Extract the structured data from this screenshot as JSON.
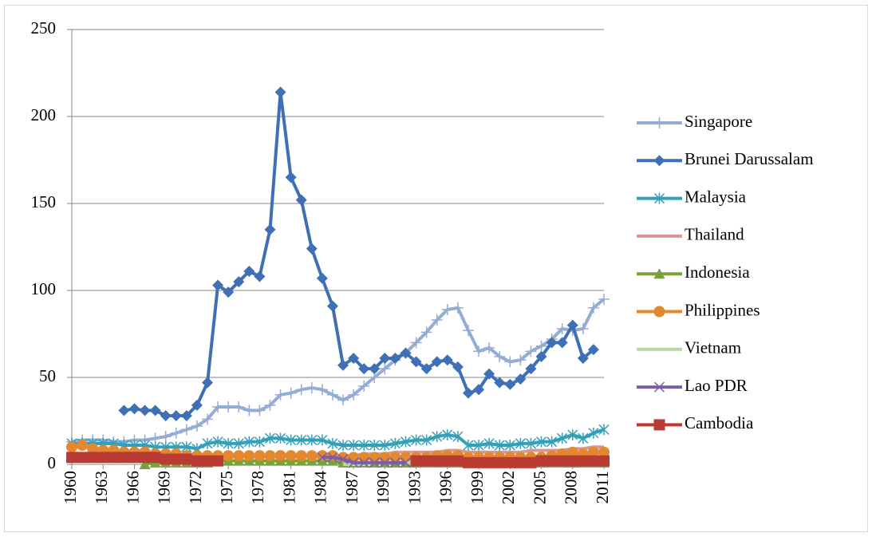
{
  "chart_data": {
    "type": "line",
    "x": [
      1960,
      1961,
      1962,
      1963,
      1964,
      1965,
      1966,
      1967,
      1968,
      1969,
      1970,
      1971,
      1972,
      1973,
      1974,
      1975,
      1976,
      1977,
      1978,
      1979,
      1980,
      1981,
      1982,
      1983,
      1984,
      1985,
      1986,
      1987,
      1988,
      1989,
      1990,
      1991,
      1992,
      1993,
      1994,
      1995,
      1996,
      1997,
      1998,
      1999,
      2000,
      2001,
      2002,
      2003,
      2004,
      2005,
      2006,
      2007,
      2008,
      2009,
      2010,
      2011
    ],
    "xlim": [
      1960,
      2011
    ],
    "xticks": [
      1960,
      1963,
      1966,
      1969,
      1972,
      1975,
      1978,
      1981,
      1984,
      1987,
      1990,
      1993,
      1996,
      1999,
      2002,
      2005,
      2008,
      2011
    ],
    "ylim": [
      0,
      250
    ],
    "yticks": [
      0,
      50,
      100,
      150,
      200,
      250
    ],
    "grid": true,
    "legend": "right",
    "series": [
      {
        "name": "Singapore",
        "color": "#95acd4",
        "marker": "plus",
        "values": [
          13,
          14,
          14,
          14,
          13,
          13,
          14,
          14,
          15,
          16,
          18,
          20,
          22,
          26,
          33,
          33,
          33,
          31,
          31,
          34,
          40,
          41,
          43,
          44,
          43,
          40,
          37,
          40,
          45,
          50,
          55,
          60,
          64,
          70,
          76,
          83,
          89,
          90,
          77,
          65,
          67,
          62,
          59,
          60,
          65,
          68,
          72,
          78,
          77,
          78,
          90,
          95
        ]
      },
      {
        "name": "Brunei Darussalam",
        "color": "#3f6fb5",
        "marker": "diamond",
        "values": [
          null,
          null,
          null,
          null,
          null,
          31,
          32,
          31,
          31,
          28,
          28,
          28,
          34,
          47,
          103,
          99,
          105,
          111,
          108,
          135,
          214,
          165,
          152,
          124,
          107,
          91,
          57,
          61,
          55,
          55,
          61,
          61,
          64,
          59,
          55,
          59,
          60,
          56,
          41,
          43,
          52,
          47,
          46,
          49,
          55,
          62,
          70,
          70,
          80,
          61,
          66,
          null
        ]
      },
      {
        "name": "Malaysia",
        "color": "#33a0b8",
        "marker": "asterisk",
        "values": [
          12,
          12,
          12,
          12,
          12,
          11,
          11,
          11,
          10,
          10,
          10,
          10,
          9,
          12,
          13,
          12,
          12,
          13,
          13,
          15,
          15,
          14,
          14,
          14,
          14,
          12,
          11,
          11,
          11,
          11,
          11,
          12,
          13,
          14,
          14,
          16,
          17,
          16,
          11,
          11,
          12,
          11,
          11,
          12,
          12,
          13,
          13,
          15,
          17,
          15,
          18,
          20
        ]
      },
      {
        "name": "Thailand",
        "color": "#d99694",
        "marker": "none",
        "values": [
          4,
          4,
          4,
          4,
          4,
          4,
          4,
          4,
          4,
          4,
          4,
          4,
          4,
          4,
          5,
          5,
          5,
          5,
          5,
          5,
          5,
          5,
          5,
          5,
          5,
          5,
          5,
          5,
          6,
          6,
          6,
          7,
          7,
          7,
          7,
          7,
          8,
          8,
          7,
          7,
          7,
          7,
          7,
          7,
          8,
          8,
          8,
          8,
          9,
          9,
          10,
          10
        ]
      },
      {
        "name": "Indonesia",
        "color": "#77a33a",
        "marker": "triangle",
        "values": [
          null,
          null,
          null,
          null,
          null,
          null,
          null,
          0,
          1,
          1,
          1,
          1,
          1,
          1,
          2,
          2,
          2,
          2,
          2,
          2,
          2,
          2,
          2,
          2,
          2,
          2,
          1,
          1,
          1,
          1,
          1,
          1,
          1,
          1,
          1,
          1,
          1,
          1,
          1,
          1,
          1,
          1,
          1,
          1,
          1,
          1,
          1,
          1,
          1,
          1,
          1,
          1
        ]
      },
      {
        "name": "Philippines",
        "color": "#e3882e",
        "marker": "circle",
        "values": [
          10,
          11,
          9,
          8,
          8,
          7,
          7,
          7,
          6,
          6,
          6,
          5,
          5,
          5,
          5,
          5,
          5,
          5,
          5,
          5,
          5,
          5,
          5,
          5,
          5,
          5,
          4,
          4,
          4,
          4,
          4,
          4,
          4,
          4,
          4,
          5,
          5,
          5,
          4,
          4,
          4,
          4,
          4,
          4,
          4,
          4,
          5,
          6,
          7,
          6,
          7,
          7
        ]
      },
      {
        "name": "Vietnam",
        "color": "#b6d7a8",
        "marker": "none",
        "values": [
          null,
          null,
          null,
          null,
          null,
          null,
          null,
          null,
          null,
          null,
          null,
          null,
          null,
          null,
          null,
          null,
          null,
          null,
          null,
          null,
          null,
          null,
          null,
          null,
          null,
          null,
          0,
          0,
          0,
          1,
          1,
          1,
          1,
          1,
          1,
          1,
          1,
          1,
          1,
          1,
          1,
          1,
          1,
          1,
          1,
          1,
          1,
          1,
          2,
          2,
          2,
          2
        ]
      },
      {
        "name": "Lao PDR",
        "color": "#7b5da6",
        "marker": "x",
        "values": [
          null,
          null,
          null,
          null,
          null,
          null,
          null,
          null,
          null,
          null,
          null,
          null,
          null,
          null,
          null,
          null,
          null,
          null,
          null,
          null,
          null,
          null,
          null,
          null,
          4,
          4,
          3,
          1,
          1,
          1,
          1,
          1,
          1,
          null,
          null,
          null,
          null,
          null,
          null,
          null,
          null,
          null,
          null,
          null,
          null,
          null,
          null,
          null,
          null,
          null,
          null,
          null
        ]
      },
      {
        "name": "Cambodia",
        "color": "#b93b34",
        "marker": "square",
        "values": [
          4,
          4,
          4,
          4,
          4,
          4,
          4,
          4,
          4,
          3,
          3,
          3,
          2,
          2,
          2,
          null,
          null,
          null,
          null,
          null,
          null,
          null,
          null,
          null,
          null,
          null,
          null,
          null,
          null,
          null,
          null,
          null,
          null,
          2,
          2,
          2,
          2,
          2,
          1,
          1,
          1,
          1,
          1,
          1,
          1,
          2,
          2,
          2,
          2,
          2,
          2,
          2
        ]
      }
    ]
  }
}
